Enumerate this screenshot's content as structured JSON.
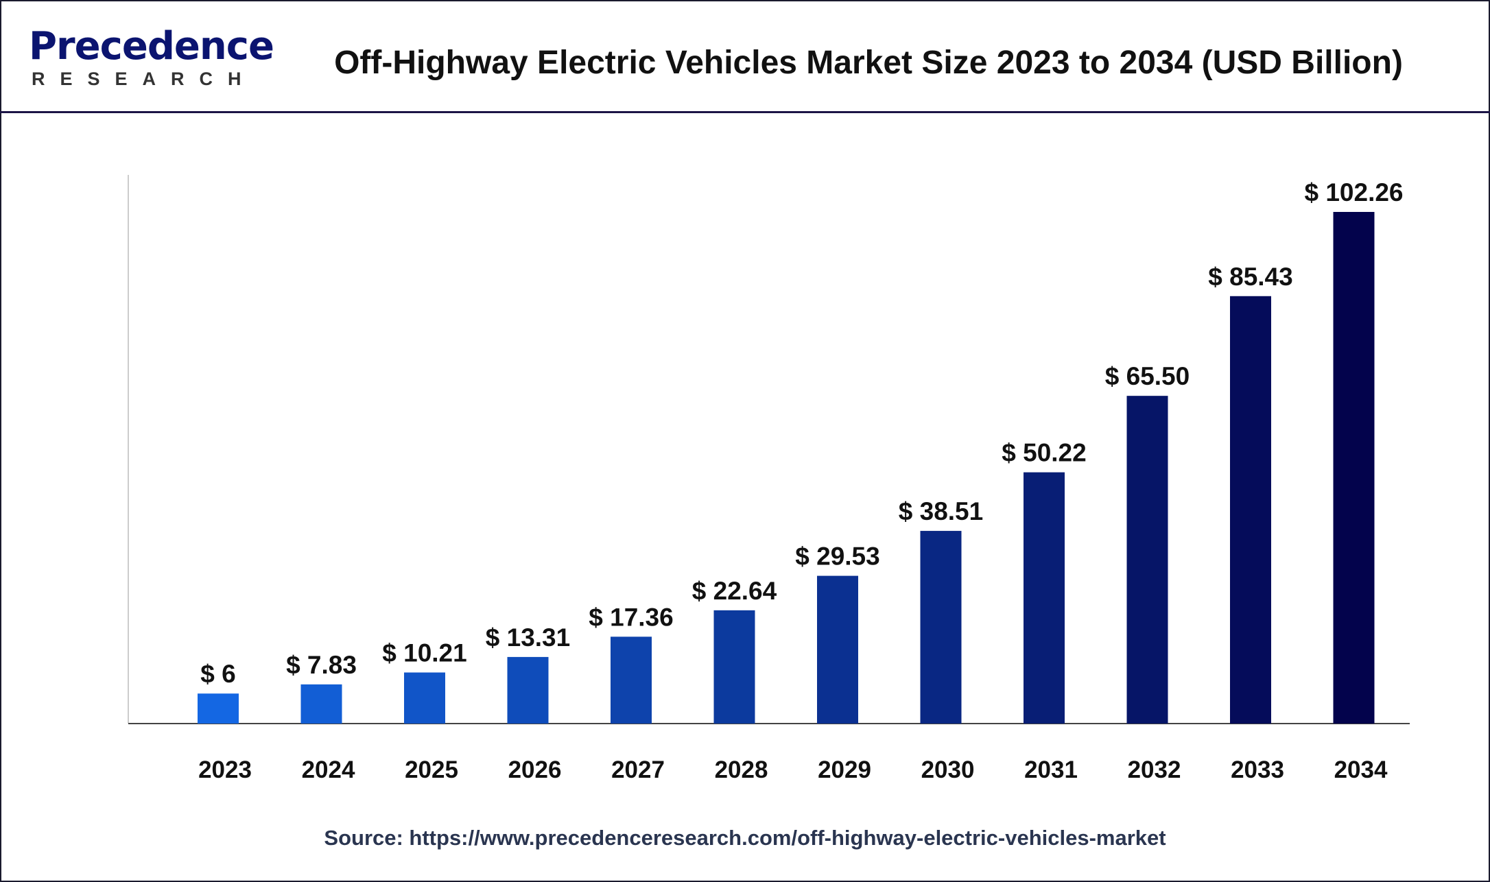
{
  "header": {
    "logo_text": "Precedence",
    "logo_sub": "RESEARCH",
    "title": "Off-Highway Electric Vehicles Market Size 2023 to 2034 (USD Billion)"
  },
  "chart_data": {
    "type": "bar",
    "title": "Off-Highway Electric Vehicles Market Size 2023 to 2034 (USD Billion)",
    "categories": [
      "2023",
      "2024",
      "2025",
      "2026",
      "2027",
      "2028",
      "2029",
      "2030",
      "2031",
      "2032",
      "2033",
      "2034"
    ],
    "values": [
      6,
      7.83,
      10.21,
      13.31,
      17.36,
      22.64,
      29.53,
      38.51,
      50.22,
      65.5,
      85.43,
      102.26
    ],
    "labels": [
      "$ 6",
      "$ 7.83",
      "$ 10.21",
      "$ 13.31",
      "$ 17.36",
      "$ 22.64",
      "$ 29.53",
      "$ 38.51",
      "$ 50.22",
      "$ 65.50",
      "$ 85.43",
      "$ 102.26"
    ],
    "ylim": [
      0,
      110
    ],
    "grid": false,
    "colors": {
      "start": "#1467e3",
      "end": "#03034c"
    }
  },
  "source": "Source: https://www.precedenceresearch.com/off-highway-electric-vehicles-market"
}
